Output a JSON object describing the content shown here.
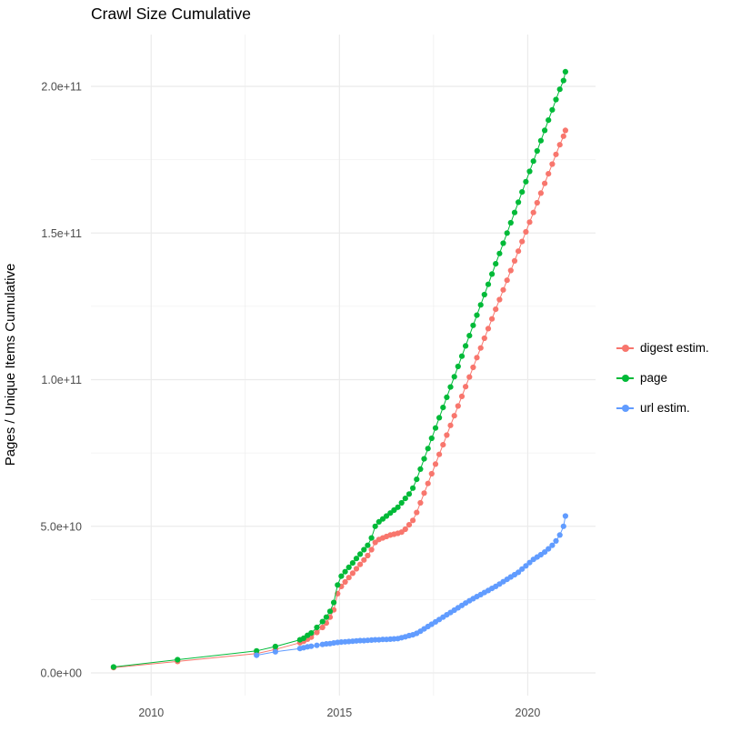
{
  "chart_data": {
    "type": "scatter",
    "title": "Crawl Size Cumulative",
    "xlabel": "",
    "ylabel": "Pages / Unique Items Cumulative",
    "background": "#ffffff",
    "grid_color": "#ebebeb",
    "axis_text_color": "#4d4d4d",
    "legend_position": "right",
    "x_ticks": [
      {
        "value": 2010,
        "label": "2010"
      },
      {
        "value": 2015,
        "label": "2015"
      },
      {
        "value": 2020,
        "label": "2020"
      }
    ],
    "x_minor": [
      2012.5,
      2017.5
    ],
    "y_ticks": [
      {
        "value": 0,
        "label": "0.0e+00"
      },
      {
        "value": 50000000000,
        "label": "5.0e+10"
      },
      {
        "value": 100000000000,
        "label": "1.0e+11"
      },
      {
        "value": 150000000000,
        "label": "1.5e+11"
      },
      {
        "value": 200000000000,
        "label": "2.0e+11"
      }
    ],
    "y_minor": [
      25000000000,
      75000000000,
      125000000000,
      175000000000
    ],
    "x_range": [
      2008.4,
      2021.8
    ],
    "y_unit": 1000000000,
    "series": [
      {
        "name": "digest estim.",
        "color": "#F8766D",
        "points": [
          [
            2009.0,
            1.8
          ],
          [
            2010.7,
            3.9
          ],
          [
            2012.8,
            6.6
          ],
          [
            2013.3,
            8.0
          ],
          [
            2013.95,
            10.3
          ],
          [
            2014.05,
            10.8
          ],
          [
            2014.15,
            11.5
          ],
          [
            2014.25,
            12.2
          ],
          [
            2014.4,
            13.8
          ],
          [
            2014.55,
            15.5
          ],
          [
            2014.65,
            17.0
          ],
          [
            2014.75,
            19.0
          ],
          [
            2014.85,
            21.5
          ],
          [
            2014.95,
            27.0
          ],
          [
            2015.05,
            29.5
          ],
          [
            2015.15,
            31.0
          ],
          [
            2015.25,
            32.5
          ],
          [
            2015.35,
            34.0
          ],
          [
            2015.45,
            35.5
          ],
          [
            2015.55,
            37.0
          ],
          [
            2015.65,
            38.5
          ],
          [
            2015.75,
            40.0
          ],
          [
            2015.85,
            42.0
          ],
          [
            2015.95,
            44.5
          ],
          [
            2016.05,
            45.5
          ],
          [
            2016.15,
            46.0
          ],
          [
            2016.25,
            46.5
          ],
          [
            2016.35,
            47.0
          ],
          [
            2016.45,
            47.3
          ],
          [
            2016.55,
            47.6
          ],
          [
            2016.65,
            48.0
          ],
          [
            2016.75,
            49.0
          ],
          [
            2016.85,
            50.5
          ],
          [
            2016.95,
            52.0
          ],
          [
            2017.05,
            54.7
          ],
          [
            2017.15,
            58.0
          ],
          [
            2017.25,
            61.3
          ],
          [
            2017.35,
            64.6
          ],
          [
            2017.45,
            67.9
          ],
          [
            2017.55,
            71.2
          ],
          [
            2017.65,
            74.5
          ],
          [
            2017.75,
            77.8
          ],
          [
            2017.85,
            81.1
          ],
          [
            2017.95,
            84.4
          ],
          [
            2018.05,
            87.7
          ],
          [
            2018.15,
            91.0
          ],
          [
            2018.25,
            94.3
          ],
          [
            2018.35,
            97.6
          ],
          [
            2018.45,
            100.9
          ],
          [
            2018.55,
            104.2
          ],
          [
            2018.65,
            107.5
          ],
          [
            2018.75,
            110.8
          ],
          [
            2018.85,
            114.1
          ],
          [
            2018.95,
            117.4
          ],
          [
            2019.05,
            120.7
          ],
          [
            2019.15,
            124.0
          ],
          [
            2019.25,
            127.3
          ],
          [
            2019.35,
            130.6
          ],
          [
            2019.45,
            133.9
          ],
          [
            2019.55,
            137.2
          ],
          [
            2019.65,
            140.5
          ],
          [
            2019.75,
            143.8
          ],
          [
            2019.85,
            147.1
          ],
          [
            2019.95,
            150.4
          ],
          [
            2020.05,
            153.7
          ],
          [
            2020.15,
            157.0
          ],
          [
            2020.25,
            160.3
          ],
          [
            2020.35,
            163.6
          ],
          [
            2020.45,
            166.9
          ],
          [
            2020.55,
            170.2
          ],
          [
            2020.65,
            173.5
          ],
          [
            2020.75,
            176.8
          ],
          [
            2020.85,
            180.1
          ],
          [
            2020.95,
            183.0
          ],
          [
            2021.0,
            185.0
          ]
        ]
      },
      {
        "name": "page",
        "color": "#00BA38",
        "points": [
          [
            2009.0,
            2.0
          ],
          [
            2010.7,
            4.5
          ],
          [
            2012.8,
            7.5
          ],
          [
            2013.3,
            9.0
          ],
          [
            2013.95,
            11.3
          ],
          [
            2014.05,
            11.8
          ],
          [
            2014.15,
            12.8
          ],
          [
            2014.25,
            13.6
          ],
          [
            2014.4,
            15.5
          ],
          [
            2014.55,
            17.5
          ],
          [
            2014.65,
            19.0
          ],
          [
            2014.75,
            21.0
          ],
          [
            2014.85,
            24.0
          ],
          [
            2014.95,
            30.0
          ],
          [
            2015.05,
            33.0
          ],
          [
            2015.15,
            34.5
          ],
          [
            2015.25,
            36.0
          ],
          [
            2015.35,
            37.5
          ],
          [
            2015.45,
            39.0
          ],
          [
            2015.55,
            40.5
          ],
          [
            2015.65,
            42.0
          ],
          [
            2015.75,
            43.5
          ],
          [
            2015.85,
            46.0
          ],
          [
            2015.95,
            50.0
          ],
          [
            2016.05,
            51.5
          ],
          [
            2016.15,
            52.5
          ],
          [
            2016.25,
            53.5
          ],
          [
            2016.35,
            54.5
          ],
          [
            2016.45,
            55.5
          ],
          [
            2016.55,
            56.5
          ],
          [
            2016.65,
            58.0
          ],
          [
            2016.75,
            59.5
          ],
          [
            2016.85,
            61.0
          ],
          [
            2016.95,
            63.0
          ],
          [
            2017.05,
            66.0
          ],
          [
            2017.15,
            69.5
          ],
          [
            2017.25,
            73.0
          ],
          [
            2017.35,
            76.5
          ],
          [
            2017.45,
            80.0
          ],
          [
            2017.55,
            83.5
          ],
          [
            2017.65,
            87.0
          ],
          [
            2017.75,
            90.5
          ],
          [
            2017.85,
            94.0
          ],
          [
            2017.95,
            97.5
          ],
          [
            2018.05,
            101.0
          ],
          [
            2018.15,
            104.5
          ],
          [
            2018.25,
            108.0
          ],
          [
            2018.35,
            111.5
          ],
          [
            2018.45,
            115.0
          ],
          [
            2018.55,
            118.5
          ],
          [
            2018.65,
            122.0
          ],
          [
            2018.75,
            125.5
          ],
          [
            2018.85,
            129.0
          ],
          [
            2018.95,
            132.5
          ],
          [
            2019.05,
            136.0
          ],
          [
            2019.15,
            139.5
          ],
          [
            2019.25,
            143.0
          ],
          [
            2019.35,
            146.5
          ],
          [
            2019.45,
            150.0
          ],
          [
            2019.55,
            153.5
          ],
          [
            2019.65,
            157.0
          ],
          [
            2019.75,
            160.5
          ],
          [
            2019.85,
            164.0
          ],
          [
            2019.95,
            167.5
          ],
          [
            2020.05,
            171.0
          ],
          [
            2020.15,
            174.5
          ],
          [
            2020.25,
            178.0
          ],
          [
            2020.35,
            181.5
          ],
          [
            2020.45,
            185.0
          ],
          [
            2020.55,
            188.5
          ],
          [
            2020.65,
            192.0
          ],
          [
            2020.75,
            195.5
          ],
          [
            2020.85,
            199.0
          ],
          [
            2020.95,
            202.0
          ],
          [
            2021.0,
            205.0
          ]
        ]
      },
      {
        "name": "url estim.",
        "color": "#619CFF",
        "points": [
          [
            2012.8,
            6.0
          ],
          [
            2013.3,
            7.2
          ],
          [
            2013.95,
            8.3
          ],
          [
            2014.05,
            8.6
          ],
          [
            2014.15,
            8.9
          ],
          [
            2014.25,
            9.1
          ],
          [
            2014.4,
            9.4
          ],
          [
            2014.55,
            9.7
          ],
          [
            2014.65,
            9.9
          ],
          [
            2014.75,
            10.0
          ],
          [
            2014.85,
            10.2
          ],
          [
            2014.95,
            10.4
          ],
          [
            2015.05,
            10.5
          ],
          [
            2015.15,
            10.6
          ],
          [
            2015.25,
            10.7
          ],
          [
            2015.35,
            10.8
          ],
          [
            2015.45,
            10.9
          ],
          [
            2015.55,
            11.0
          ],
          [
            2015.65,
            11.0
          ],
          [
            2015.75,
            11.1
          ],
          [
            2015.85,
            11.2
          ],
          [
            2015.95,
            11.3
          ],
          [
            2016.05,
            11.3
          ],
          [
            2016.15,
            11.4
          ],
          [
            2016.25,
            11.4
          ],
          [
            2016.35,
            11.5
          ],
          [
            2016.45,
            11.6
          ],
          [
            2016.55,
            11.7
          ],
          [
            2016.65,
            12.0
          ],
          [
            2016.75,
            12.3
          ],
          [
            2016.85,
            12.7
          ],
          [
            2016.95,
            13.0
          ],
          [
            2017.05,
            13.5
          ],
          [
            2017.15,
            14.2
          ],
          [
            2017.25,
            15.0
          ],
          [
            2017.35,
            15.8
          ],
          [
            2017.45,
            16.6
          ],
          [
            2017.55,
            17.4
          ],
          [
            2017.65,
            18.2
          ],
          [
            2017.75,
            19.0
          ],
          [
            2017.85,
            19.8
          ],
          [
            2017.95,
            20.6
          ],
          [
            2018.05,
            21.4
          ],
          [
            2018.15,
            22.2
          ],
          [
            2018.25,
            23.0
          ],
          [
            2018.35,
            23.8
          ],
          [
            2018.45,
            24.6
          ],
          [
            2018.55,
            25.3
          ],
          [
            2018.65,
            26.0
          ],
          [
            2018.75,
            26.7
          ],
          [
            2018.85,
            27.4
          ],
          [
            2018.95,
            28.1
          ],
          [
            2019.05,
            28.8
          ],
          [
            2019.15,
            29.5
          ],
          [
            2019.25,
            30.3
          ],
          [
            2019.35,
            31.1
          ],
          [
            2019.45,
            31.9
          ],
          [
            2019.55,
            32.7
          ],
          [
            2019.65,
            33.5
          ],
          [
            2019.75,
            34.3
          ],
          [
            2019.85,
            35.4
          ],
          [
            2019.95,
            36.5
          ],
          [
            2020.05,
            37.6
          ],
          [
            2020.15,
            38.7
          ],
          [
            2020.25,
            39.5
          ],
          [
            2020.35,
            40.3
          ],
          [
            2020.45,
            41.2
          ],
          [
            2020.55,
            42.3
          ],
          [
            2020.65,
            43.5
          ],
          [
            2020.75,
            45.0
          ],
          [
            2020.85,
            47.0
          ],
          [
            2020.95,
            50.0
          ],
          [
            2021.0,
            53.5
          ]
        ]
      }
    ]
  }
}
